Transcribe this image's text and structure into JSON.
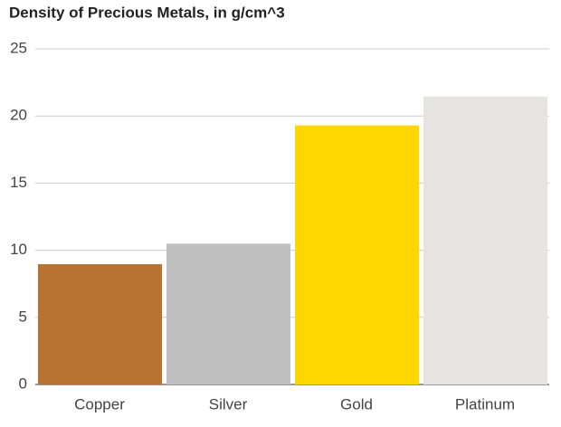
{
  "chart_data": {
    "type": "bar",
    "title": "Density of Precious Metals, in g/cm^3",
    "categories": [
      "Copper",
      "Silver",
      "Gold",
      "Platinum"
    ],
    "values": [
      8.96,
      10.49,
      19.3,
      21.45
    ],
    "colors": [
      "#b87333",
      "#c0c0c0",
      "#ffd700",
      "#e5e4e2"
    ],
    "ylim": [
      0,
      25
    ],
    "yticks": [
      0,
      5,
      10,
      15,
      20,
      25
    ],
    "grid": true
  }
}
